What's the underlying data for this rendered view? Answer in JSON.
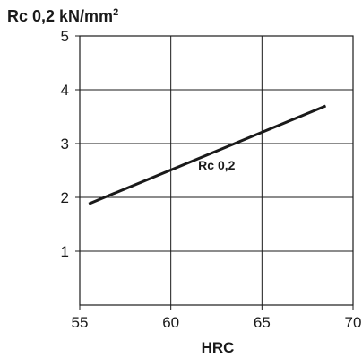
{
  "chart_data": {
    "type": "line",
    "title": "",
    "ylabel": "Rc 0,2 kN/mm",
    "ylabel_superscript": "2",
    "xlabel": "HRC",
    "xlim": [
      55,
      70
    ],
    "ylim": [
      0,
      5
    ],
    "x_ticks": [
      55,
      60,
      65,
      70
    ],
    "y_ticks": [
      1,
      2,
      3,
      4,
      5
    ],
    "grid": true,
    "series": [
      {
        "name": "Rc 0,2",
        "x": [
          55.5,
          68.5
        ],
        "y": [
          1.88,
          3.7
        ]
      }
    ],
    "annotations": [
      {
        "text": "Rc 0,2",
        "x": 61.5,
        "y": 2.52
      }
    ],
    "colors": {
      "line": "#1a1a1a",
      "grid": "#1a1a1a",
      "background": "#ffffff"
    }
  }
}
